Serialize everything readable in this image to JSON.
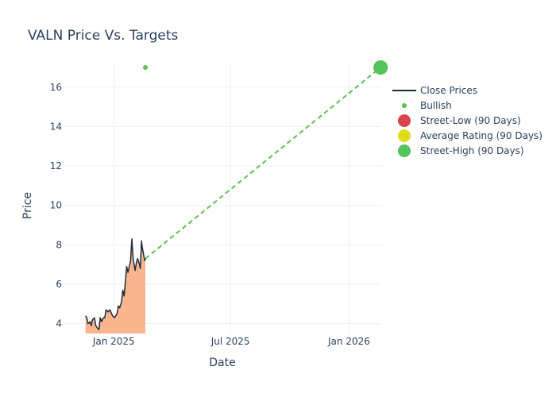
{
  "chart_data": {
    "type": "line",
    "title": "VALN Price Vs. Targets",
    "xlabel": "Date",
    "ylabel": "Price",
    "x_ticks": [
      "Jan 2025",
      "Jul 2025",
      "Jan 2026"
    ],
    "y_ticks": [
      4,
      6,
      8,
      10,
      12,
      14,
      16
    ],
    "xlim": [
      "2024-10-15",
      "2026-02-20"
    ],
    "ylim": [
      3.5,
      17.2
    ],
    "grid": true,
    "legend_position": "right",
    "series": [
      {
        "name": "Close Prices",
        "color": "#1f2a3a",
        "fill_color": "#f9a87a",
        "dates": [
          "2024-11-18",
          "2024-11-20",
          "2024-11-22",
          "2024-11-25",
          "2024-11-27",
          "2024-11-29",
          "2024-12-02",
          "2024-12-04",
          "2024-12-06",
          "2024-12-09",
          "2024-12-11",
          "2024-12-13",
          "2024-12-16",
          "2024-12-18",
          "2024-12-20",
          "2024-12-23",
          "2024-12-26",
          "2024-12-30",
          "2025-01-02",
          "2025-01-06",
          "2025-01-08",
          "2025-01-10",
          "2025-01-13",
          "2025-01-15",
          "2025-01-17",
          "2025-01-21",
          "2025-01-23",
          "2025-01-27",
          "2025-01-29",
          "2025-01-31",
          "2025-02-03",
          "2025-02-05",
          "2025-02-07",
          "2025-02-10",
          "2025-02-11",
          "2025-02-12",
          "2025-02-13",
          "2025-02-14",
          "2025-02-18",
          "2025-02-19"
        ],
        "values": [
          4.4,
          4.3,
          4.0,
          4.1,
          3.9,
          4.2,
          4.3,
          3.9,
          3.8,
          3.7,
          4.3,
          4.1,
          4.3,
          4.3,
          4.7,
          4.6,
          4.7,
          4.4,
          4.3,
          4.5,
          4.9,
          4.8,
          5.1,
          5.7,
          5.4,
          6.9,
          6.6,
          7.2,
          8.3,
          7.3,
          6.7,
          7.1,
          7.3,
          7.0,
          6.8,
          7.5,
          8.2,
          7.9,
          7.2,
          7.3
        ],
        "_note_unused": null
      },
      {
        "name": "Bullish",
        "color": "#5fbf4f",
        "points": [
          {
            "date": "2025-02-19",
            "value": 17
          }
        ]
      }
    ],
    "targets": [
      {
        "name": "Street-Low (90 Days)",
        "color": "#d9434b",
        "date": "2026-02-19",
        "value": 17
      },
      {
        "name": "Average Rating (90 Days)",
        "color": "#dddd1a",
        "date": "2026-02-19",
        "value": 17
      },
      {
        "name": "Street-High (90 Days)",
        "color": "#52c45a",
        "date": "2026-02-19",
        "value": 17
      }
    ],
    "projection": {
      "color": "#5fbf4f",
      "from_date": "2025-02-19",
      "from_value": 7.3,
      "to_date": "2026-02-19",
      "to_value": 17
    }
  }
}
